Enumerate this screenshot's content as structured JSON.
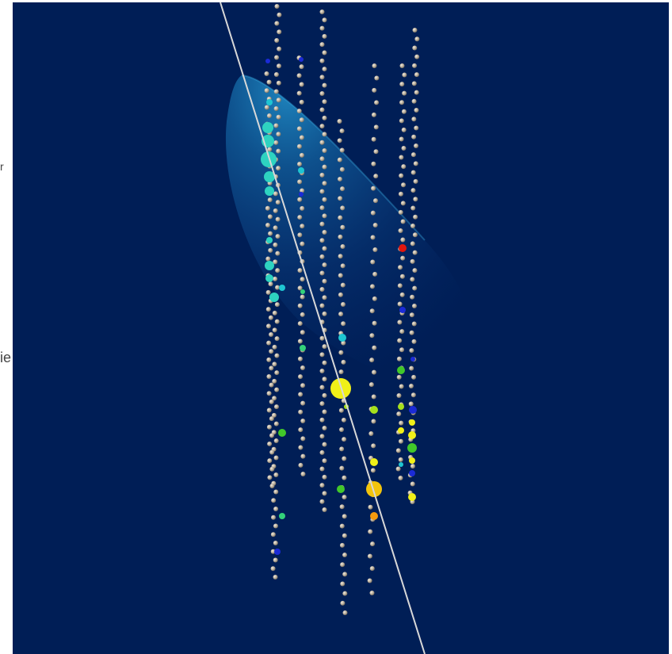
{
  "left_margin_text": {
    "partial_label_lower": "ie",
    "partial_label_upper": "r"
  },
  "scene": {
    "background": "#001e56",
    "track_color": "#d8d8d8",
    "cone_color": "#29a7e0",
    "idle_module_color": "#b5aa98",
    "hit_colors": [
      "#1b2bd6",
      "#1fc6d2",
      "#2ed3c0",
      "#33d27a",
      "#42c82a",
      "#a6e01c",
      "#f0f018",
      "#f2c40d",
      "#f59a0e",
      "#e0160e"
    ]
  }
}
